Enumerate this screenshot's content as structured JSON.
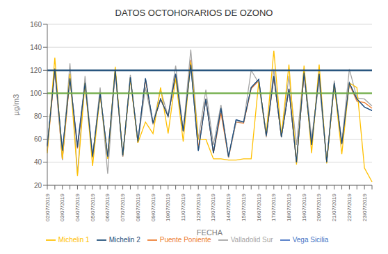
{
  "chart_data": {
    "type": "line",
    "title": "DATOS OCTOHORARIOS DE OZONO",
    "x_label": "FECHA",
    "y_label": "µg/m3",
    "categories": [
      "02/07/2019",
      null,
      "03/07/2019",
      null,
      "04/07/2019",
      null,
      "05/07/2019",
      null,
      "06/07/2019",
      null,
      "07/07/2019",
      null,
      "08/07/2019",
      null,
      "09/07/2019",
      null,
      "10/07/2019",
      null,
      "11/07/2019",
      null,
      "12/07/2019",
      null,
      "13/07/2019",
      null,
      "14/07/2019",
      null,
      "15/07/2019",
      null,
      "16/07/2019",
      null,
      "17/07/2019",
      null,
      "18/07/2019",
      null,
      "19/07/2019",
      null,
      "20/07/2019",
      null,
      "21/07/2019",
      null,
      "22/07/2019",
      null,
      "23/07/2019",
      null
    ],
    "series": [
      {
        "name": "Vega Sicilia",
        "color": "#4472C4",
        "values": [
          55,
          120,
          50,
          113,
          55,
          110,
          45,
          100,
          45,
          120,
          46,
          114,
          58,
          113,
          74,
          95,
          80,
          117,
          67,
          125,
          50,
          95,
          48,
          87,
          45,
          77,
          75,
          105,
          112,
          63,
          115,
          62,
          104,
          40,
          118,
          55,
          117,
          40,
          109,
          56,
          109,
          95,
          88,
          85
        ]
      },
      {
        "name": "Puente Poniente",
        "color": "#ED7D31",
        "values": [
          50,
          120,
          42,
          113,
          52,
          108,
          44,
          99,
          44,
          119,
          45,
          113,
          57,
          112,
          73,
          95,
          80,
          116,
          67,
          129,
          52,
          95,
          48,
          83,
          44,
          75,
          74,
          104,
          111,
          62,
          114,
          62,
          104,
          40,
          117,
          55,
          117,
          40,
          108,
          56,
          108,
          93,
          92,
          87
        ]
      },
      {
        "name": "Valladolid Sur",
        "color": "#A5A5A5",
        "values": [
          53,
          122,
          42,
          126,
          30,
          115,
          44,
          105,
          30,
          121,
          45,
          116,
          57,
          105,
          73,
          103,
          80,
          124,
          67,
          138,
          60,
          103,
          55,
          90,
          44,
          75,
          75,
          120,
          109,
          62,
          121,
          62,
          115,
          55,
          121,
          61,
          110,
          41,
          111,
          57,
          121,
          96,
          95,
          89
        ]
      },
      {
        "name": "Michelin 1",
        "color": "#FFC000",
        "values": [
          48,
          131,
          43,
          117,
          28,
          109,
          37,
          99,
          43,
          123,
          46,
          113,
          57,
          75,
          65,
          105,
          65,
          113,
          58,
          127,
          60,
          60,
          43,
          43,
          42,
          42,
          43,
          43,
          110,
          65,
          137,
          63,
          125,
          38,
          124,
          48,
          125,
          39,
          108,
          47,
          109,
          105,
          35,
          23
        ]
      },
      {
        "name": "Michelin 2",
        "color": "#1F4E79",
        "values": [
          54,
          121,
          50,
          113,
          53,
          109,
          45,
          100,
          45,
          120,
          46,
          114,
          58,
          113,
          74,
          95,
          80,
          117,
          67,
          125,
          50,
          95,
          48,
          87,
          45,
          77,
          75,
          105,
          112,
          63,
          115,
          62,
          104,
          40,
          118,
          55,
          117,
          40,
          109,
          56,
          109,
          95,
          88,
          85
        ]
      }
    ],
    "hlines": [
      {
        "value": 120,
        "color": "#1F4E79"
      },
      {
        "value": 100,
        "color": "#70AD47"
      }
    ],
    "ylim": [
      20,
      160
    ],
    "yticks": [
      20,
      40,
      60,
      80,
      100,
      120,
      140,
      160
    ],
    "grid": true,
    "legend": "bottom"
  }
}
